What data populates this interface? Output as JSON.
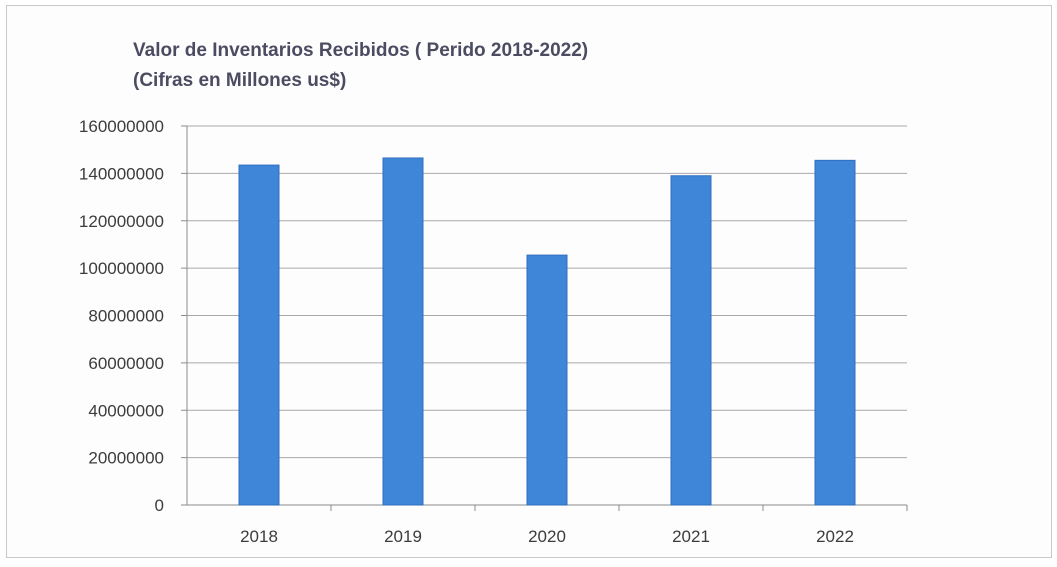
{
  "chart_data": {
    "type": "bar",
    "title_lines": [
      "Valor de Inventarios Recibidos ( Perido 2018-2022)",
      "(Cifras en Millones us$)"
    ],
    "categories": [
      "2018",
      "2019",
      "2020",
      "2021",
      "2022"
    ],
    "values": [
      143500000,
      146500000,
      105500000,
      139000000,
      145500000
    ],
    "y_ticks": [
      "0",
      "20000000",
      "40000000",
      "60000000",
      "80000000",
      "100000000",
      "120000000",
      "140000000",
      "160000000"
    ],
    "ylim": [
      0,
      160000000
    ],
    "xlabel": "",
    "ylabel": "",
    "grid": true,
    "legend": "none",
    "colors": {
      "bar": "#3f86d8",
      "bar_edge": "#2f6fbf",
      "grid": "#a9a9a9",
      "axis": "#8c8c8c"
    }
  }
}
